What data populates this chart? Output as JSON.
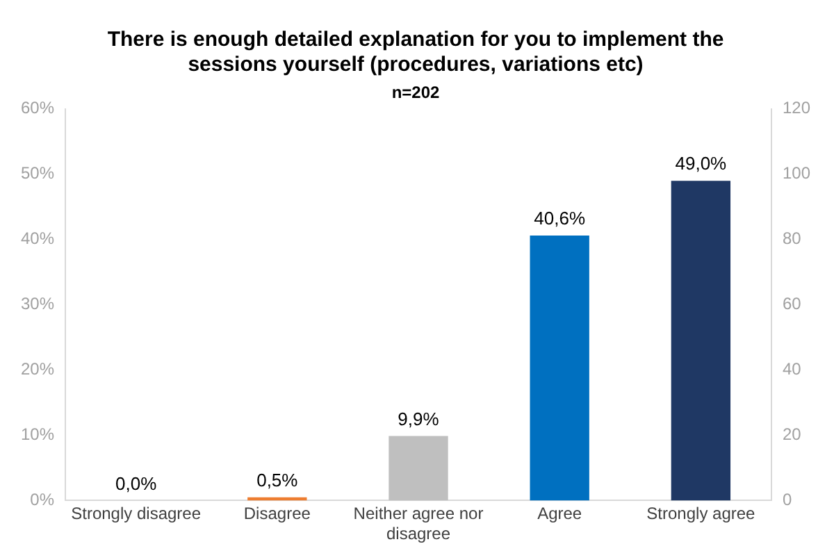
{
  "chart_data": {
    "type": "bar",
    "title": "There is enough detailed explanation for you to implement the sessions yourself (procedures, variations etc)",
    "subtitle": "n=202",
    "categories": [
      "Strongly disagree",
      "Disagree",
      "Neither agree nor disagree",
      "Agree",
      "Strongly agree"
    ],
    "values": [
      0.0,
      0.5,
      9.9,
      40.6,
      49.0
    ],
    "colors": [
      "#a5a5a5",
      "#ed7d31",
      "#bfbfbf",
      "#0070c0",
      "#1f3864"
    ],
    "value_labels": [
      "0,0%",
      "0,5%",
      "9,9%",
      "40,6%",
      "49,0%"
    ],
    "ylim": [
      0,
      60
    ],
    "yticks": [
      {
        "value": 0,
        "label": "0%"
      },
      {
        "value": 10,
        "label": "10%"
      },
      {
        "value": 20,
        "label": "20%"
      },
      {
        "value": 30,
        "label": "30%"
      },
      {
        "value": 40,
        "label": "40%"
      },
      {
        "value": 50,
        "label": "50%"
      },
      {
        "value": 60,
        "label": "60%"
      }
    ],
    "y2lim": [
      0,
      120
    ],
    "y2ticks": [
      0,
      20,
      40,
      60,
      80,
      100,
      120
    ],
    "grid": false,
    "legend": false
  }
}
